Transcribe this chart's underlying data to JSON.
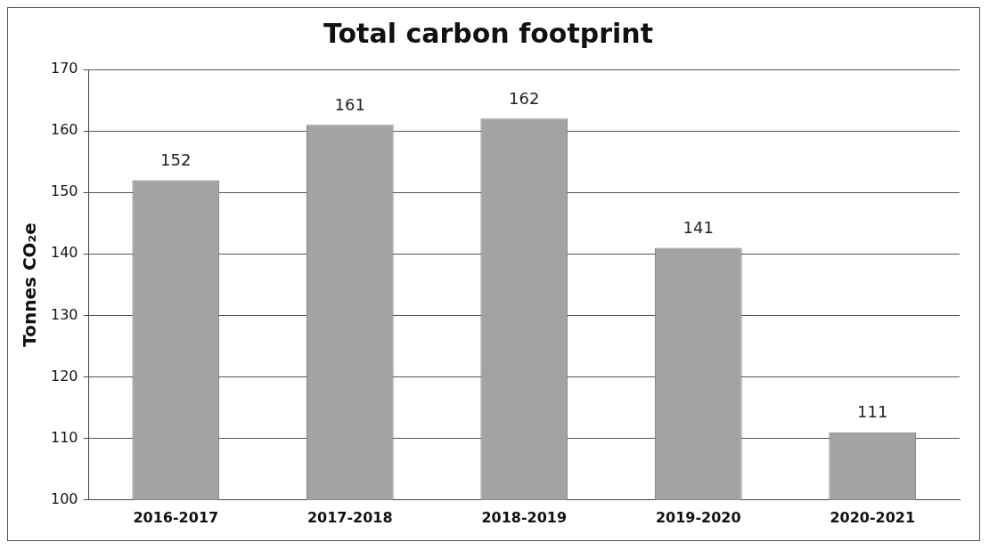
{
  "chart_data": {
    "type": "bar",
    "title": "Total carbon footprint",
    "ylabel": "Tonnes CO₂e",
    "categories": [
      "2016-2017",
      "2017-2018",
      "2018-2019",
      "2019-2020",
      "2020-2021"
    ],
    "values": [
      152,
      161,
      162,
      141,
      111
    ],
    "color": "#a3a3a3",
    "ylim": [
      100,
      170
    ],
    "yticks": [
      100,
      110,
      120,
      130,
      140,
      150,
      160,
      170
    ],
    "grid": "y",
    "data_labels": true,
    "legend": false
  }
}
